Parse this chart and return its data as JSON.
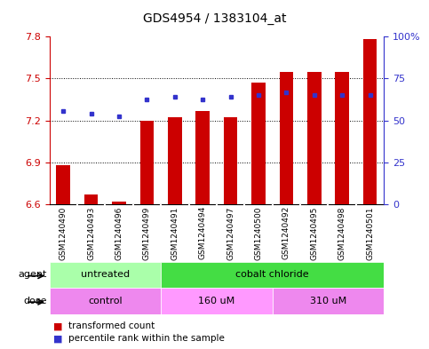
{
  "title": "GDS4954 / 1383104_at",
  "samples": [
    "GSM1240490",
    "GSM1240493",
    "GSM1240496",
    "GSM1240499",
    "GSM1240491",
    "GSM1240494",
    "GSM1240497",
    "GSM1240500",
    "GSM1240492",
    "GSM1240495",
    "GSM1240498",
    "GSM1240501"
  ],
  "bar_values": [
    6.88,
    6.67,
    6.62,
    7.2,
    7.22,
    7.27,
    7.22,
    7.47,
    7.55,
    7.55,
    7.55,
    7.78
  ],
  "bar_base": 6.6,
  "blue_values": [
    7.27,
    7.25,
    7.23,
    7.35,
    7.37,
    7.35,
    7.37,
    7.38,
    7.4,
    7.38,
    7.38,
    7.38
  ],
  "bar_color": "#cc0000",
  "blue_color": "#3333cc",
  "ylim": [
    6.6,
    7.8
  ],
  "yticks": [
    6.6,
    6.9,
    7.2,
    7.5,
    7.8
  ],
  "y2ticks_pct": [
    0,
    25,
    50,
    75,
    100
  ],
  "y2labels": [
    "0",
    "25",
    "50",
    "75",
    "100%"
  ],
  "dotted_lines": [
    6.9,
    7.2,
    7.5
  ],
  "agent_groups": [
    {
      "label": "untreated",
      "start": 0,
      "end": 4,
      "color": "#aaffaa"
    },
    {
      "label": "cobalt chloride",
      "start": 4,
      "end": 12,
      "color": "#55ee55"
    }
  ],
  "dose_groups": [
    {
      "label": "control",
      "start": 0,
      "end": 4,
      "color": "#ee99ee"
    },
    {
      "label": "160 uM",
      "start": 4,
      "end": 8,
      "color": "#ff88ff"
    },
    {
      "label": "310 uM",
      "start": 8,
      "end": 12,
      "color": "#ee99ee"
    }
  ],
  "legend_red_label": "transformed count",
  "legend_blue_label": "percentile rank within the sample",
  "agent_label": "agent",
  "dose_label": "dose",
  "sample_bg": "#c8c8c8",
  "agent_untreated_color": "#aaffaa",
  "agent_cobalt_color": "#44dd44",
  "dose_control_color": "#ee88ee",
  "dose_160_color": "#ff99ff",
  "dose_310_color": "#ee88ee"
}
